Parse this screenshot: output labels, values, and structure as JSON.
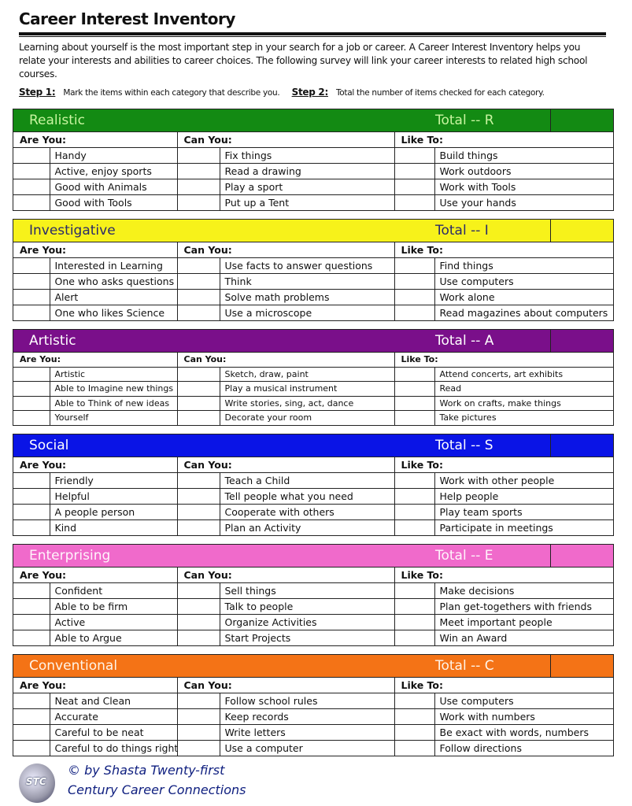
{
  "title": "Career Interest Inventory",
  "intro": "Learning about yourself is the most important step in your search for a job or career.  A Career Interest Inventory helps you relate your interests and abilities to career choices.  The following survey will link your career interests to related high school courses.",
  "step1_label": "Step 1:",
  "step1_text": "Mark the items within each category that describe you.",
  "step2_label": "Step 2:",
  "step2_text": "Total the number of items checked for each category.",
  "columns": {
    "are": "Are You:",
    "can": "Can You:",
    "like": "Like To:"
  },
  "sections": [
    {
      "name": "Realistic",
      "total": "Total -- R",
      "color": "#138a13",
      "text_color": "#c8f5a0",
      "are": [
        "Handy",
        "Active, enjoy sports",
        "Good with Animals",
        "Good with Tools"
      ],
      "can": [
        "Fix things",
        "Read a drawing",
        "Play a sport",
        "Put up a Tent"
      ],
      "like": [
        "Build things",
        "Work outdoors",
        "Work with Tools",
        "Use your hands"
      ]
    },
    {
      "name": "Investigative",
      "total": "Total -- I",
      "color": "#f7f21a",
      "text_color": "#2a2a6a",
      "are": [
        "Interested in Learning",
        "One who asks questions",
        "Alert",
        "One who likes Science"
      ],
      "can": [
        "Use facts to answer questions",
        "Think",
        "Solve math problems",
        "Use a microscope"
      ],
      "like": [
        "Find things",
        "Use computers",
        "Work alone",
        "Read magazines about computers"
      ]
    },
    {
      "name": "Artistic",
      "total": "Total -- A",
      "color": "#7a0f8a",
      "text_color": "#ffffff",
      "are": [
        "Artistic",
        "Able to Imagine new things",
        "Able to Think of new ideas",
        "Yourself"
      ],
      "can": [
        "Sketch, draw, paint",
        "Play a musical instrument",
        "Write stories, sing, act, dance",
        "Decorate your room"
      ],
      "like": [
        "Attend concerts, art exhibits",
        "Read",
        "Work on crafts, make things",
        "Take pictures"
      ]
    },
    {
      "name": "Social",
      "total": "Total -- S",
      "color": "#0a14e6",
      "text_color": "#ffffff",
      "are": [
        "Friendly",
        "Helpful",
        "A people person",
        "Kind"
      ],
      "can": [
        "Teach a Child",
        "Tell people what you need",
        "Cooperate with others",
        "Plan an Activity"
      ],
      "like": [
        "Work with other people",
        "Help people",
        "Play team sports",
        "Participate in meetings"
      ]
    },
    {
      "name": "Enterprising",
      "total": "Total -- E",
      "color": "#f06acb",
      "text_color": "#fff4fb",
      "are": [
        "Confident",
        "Able to be firm",
        "Active",
        "Able to Argue"
      ],
      "can": [
        "Sell things",
        "Talk to people",
        "Organize Activities",
        "Start Projects"
      ],
      "like": [
        "Make decisions",
        "Plan get-togethers with friends",
        "Meet important people",
        "Win an Award"
      ]
    },
    {
      "name": "Conventional",
      "total": "Total -- C",
      "color": "#f47316",
      "text_color": "#fff4e8",
      "are": [
        "Neat and Clean",
        "Accurate",
        "Careful to be neat",
        "Careful to do things right"
      ],
      "can": [
        "Follow school rules",
        "Keep records",
        "Write letters",
        "Use a computer"
      ],
      "like": [
        "Use computers",
        "Work with numbers",
        "Be exact with words, numbers",
        "Follow directions"
      ]
    }
  ],
  "footer": {
    "line1": "© by Shasta Twenty-first",
    "line2": "Century Career Connections",
    "logo_text": "STC"
  }
}
